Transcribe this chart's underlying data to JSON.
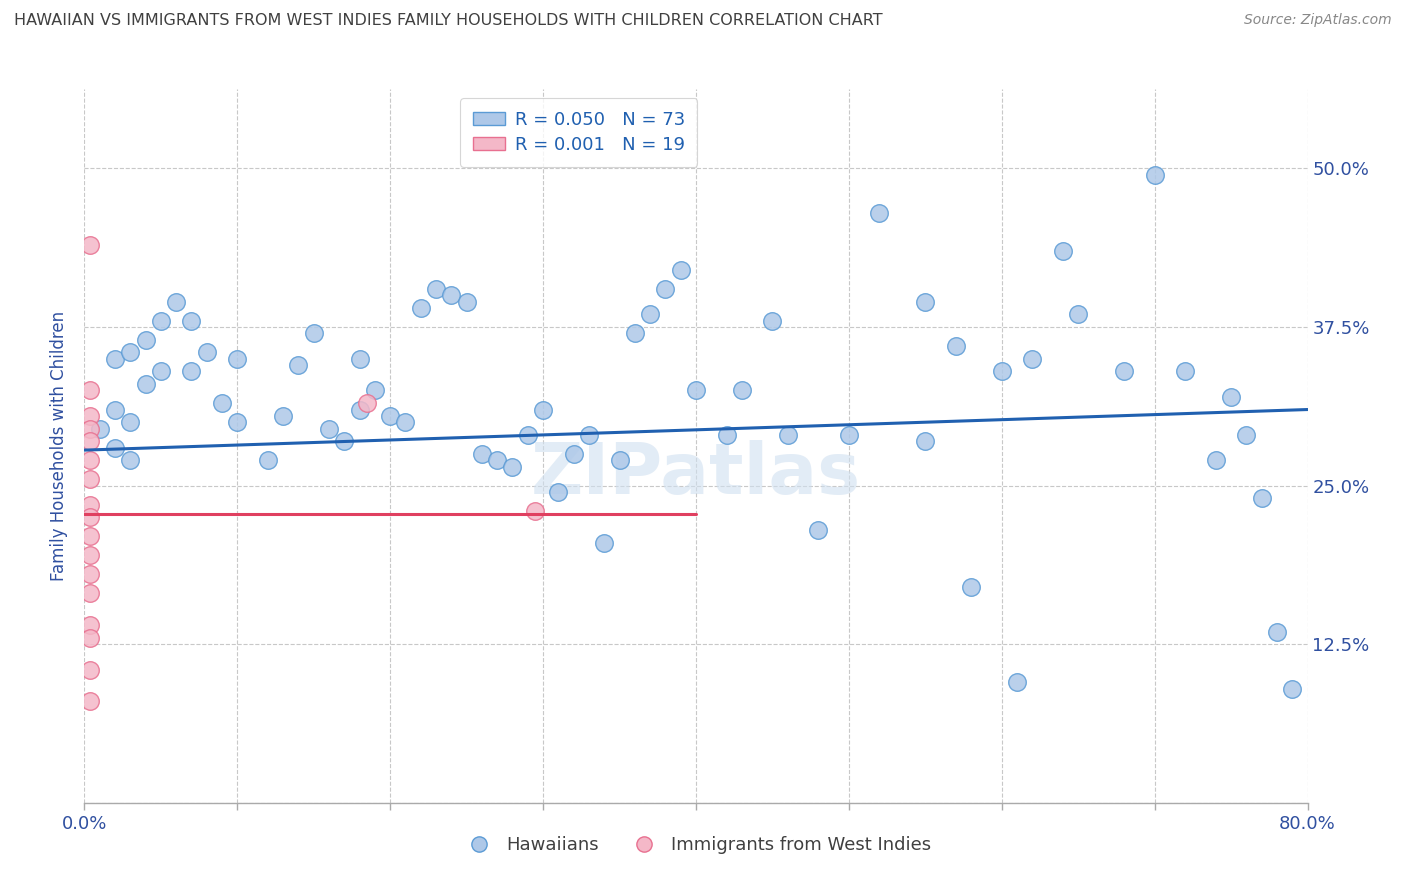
{
  "title": "HAWAIIAN VS IMMIGRANTS FROM WEST INDIES FAMILY HOUSEHOLDS WITH CHILDREN CORRELATION CHART",
  "source": "Source: ZipAtlas.com",
  "ylabel": "Family Households with Children",
  "xlim": [
    0,
    0.8
  ],
  "ylim": [
    0,
    0.5625
  ],
  "yticks": [
    0.0,
    0.125,
    0.25,
    0.375,
    0.5
  ],
  "ytick_labels_right": [
    "",
    "12.5%",
    "25.0%",
    "37.5%",
    "50.0%"
  ],
  "xticks": [
    0.0,
    0.1,
    0.2,
    0.3,
    0.4,
    0.5,
    0.6,
    0.7,
    0.8
  ],
  "xtick_labels": [
    "0.0%",
    "",
    "",
    "",
    "",
    "",
    "",
    "",
    "80.0%"
  ],
  "legend_blue_r": "R = 0.050",
  "legend_blue_n": "N = 73",
  "legend_pink_r": "R = 0.001",
  "legend_pink_n": "N = 19",
  "blue_color": "#aec8e8",
  "blue_edge_color": "#5b9bd5",
  "pink_color": "#f4b8c8",
  "pink_edge_color": "#e87090",
  "blue_line_color": "#2060b0",
  "pink_line_color": "#e04060",
  "background_color": "#ffffff",
  "grid_color": "#c8c8c8",
  "title_color": "#404040",
  "source_color": "#888888",
  "axis_label_color": "#3050a0",
  "tick_label_color": "#3050a0",
  "watermark": "ZIPatlas",
  "watermark_color": "#d0e0f0",
  "blue_scatter_x": [
    0.01,
    0.02,
    0.02,
    0.02,
    0.03,
    0.03,
    0.03,
    0.04,
    0.04,
    0.05,
    0.05,
    0.06,
    0.07,
    0.07,
    0.08,
    0.09,
    0.1,
    0.1,
    0.12,
    0.13,
    0.14,
    0.15,
    0.16,
    0.17,
    0.18,
    0.18,
    0.19,
    0.2,
    0.21,
    0.22,
    0.23,
    0.24,
    0.25,
    0.26,
    0.27,
    0.28,
    0.29,
    0.3,
    0.31,
    0.32,
    0.33,
    0.34,
    0.35,
    0.36,
    0.37,
    0.38,
    0.39,
    0.4,
    0.42,
    0.43,
    0.45,
    0.46,
    0.48,
    0.5,
    0.52,
    0.55,
    0.57,
    0.6,
    0.62,
    0.64,
    0.65,
    0.68,
    0.7,
    0.72,
    0.74,
    0.75,
    0.76,
    0.77,
    0.78,
    0.79,
    0.55,
    0.58,
    0.61
  ],
  "blue_scatter_y": [
    0.295,
    0.35,
    0.31,
    0.28,
    0.355,
    0.3,
    0.27,
    0.365,
    0.33,
    0.38,
    0.34,
    0.395,
    0.34,
    0.38,
    0.355,
    0.315,
    0.35,
    0.3,
    0.27,
    0.305,
    0.345,
    0.37,
    0.295,
    0.285,
    0.31,
    0.35,
    0.325,
    0.305,
    0.3,
    0.39,
    0.405,
    0.4,
    0.395,
    0.275,
    0.27,
    0.265,
    0.29,
    0.31,
    0.245,
    0.275,
    0.29,
    0.205,
    0.27,
    0.37,
    0.385,
    0.405,
    0.42,
    0.325,
    0.29,
    0.325,
    0.38,
    0.29,
    0.215,
    0.29,
    0.465,
    0.395,
    0.36,
    0.34,
    0.35,
    0.435,
    0.385,
    0.34,
    0.495,
    0.34,
    0.27,
    0.32,
    0.29,
    0.24,
    0.135,
    0.09,
    0.285,
    0.17,
    0.095
  ],
  "pink_scatter_x": [
    0.004,
    0.004,
    0.004,
    0.004,
    0.004,
    0.004,
    0.004,
    0.004,
    0.004,
    0.004,
    0.004,
    0.004,
    0.004,
    0.004,
    0.004,
    0.004,
    0.004,
    0.185,
    0.295
  ],
  "pink_scatter_y": [
    0.44,
    0.325,
    0.305,
    0.295,
    0.285,
    0.27,
    0.255,
    0.235,
    0.225,
    0.21,
    0.195,
    0.18,
    0.165,
    0.14,
    0.13,
    0.105,
    0.08,
    0.315,
    0.23
  ],
  "blue_line_x0": 0.0,
  "blue_line_x1": 0.8,
  "blue_line_y0": 0.278,
  "blue_line_y1": 0.31,
  "pink_line_x0": 0.0,
  "pink_line_x1": 0.4,
  "pink_line_y0": 0.228,
  "pink_line_y1": 0.228
}
